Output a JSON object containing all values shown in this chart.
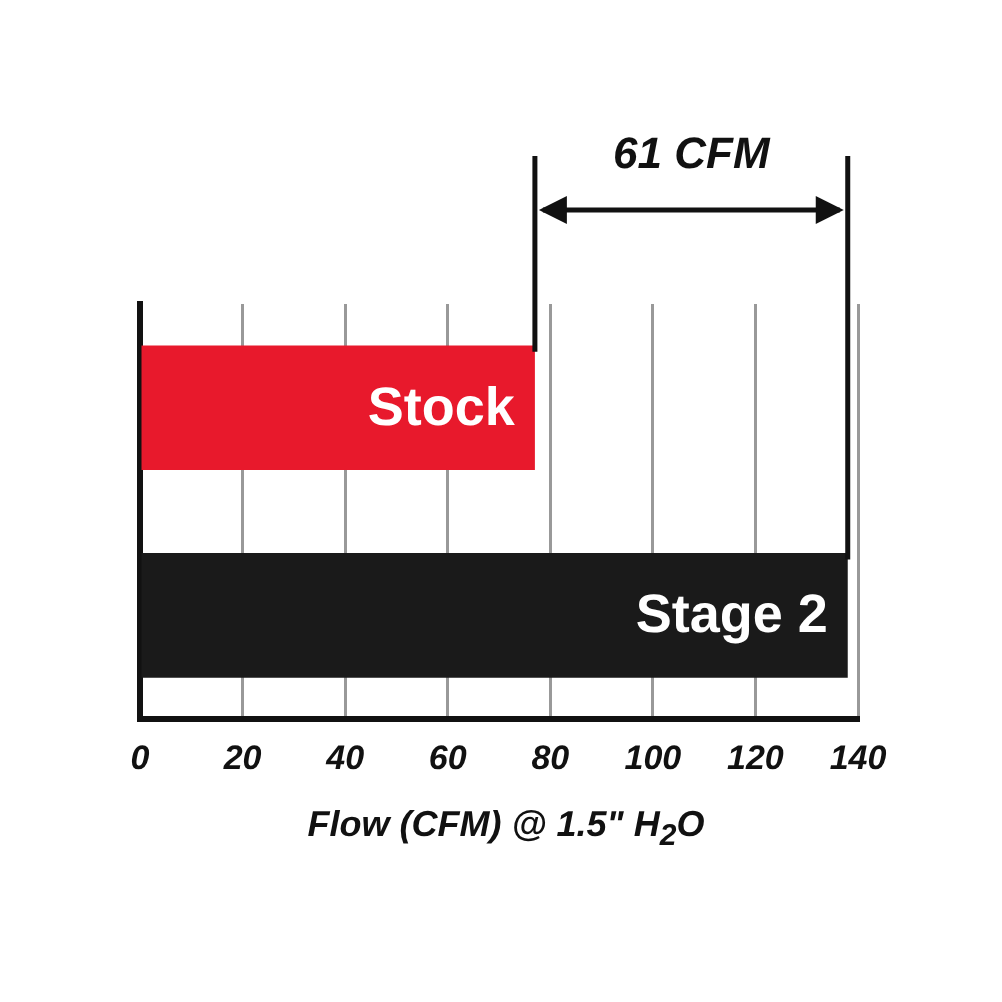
{
  "chart_data": {
    "type": "bar",
    "orientation": "horizontal",
    "categories": [
      "Stock",
      "Stage 2"
    ],
    "values": [
      77,
      138
    ],
    "colors": [
      "#e8192c",
      "#1a1a1a"
    ],
    "xlim": [
      0,
      140
    ],
    "xticks": [
      0,
      20,
      40,
      60,
      80,
      100,
      120,
      140
    ],
    "grid": "x",
    "tick_labels": "x",
    "legend": false,
    "xlabel": "Flow (CFM) @ 1.5\" H$_{2}$O",
    "annotations": [
      "61 CFM"
    ],
    "ref_lines": [
      {
        "axis": "x",
        "value": 77,
        "color": "#111111"
      },
      {
        "axis": "x",
        "value": 138,
        "color": "#111111"
      }
    ]
  }
}
